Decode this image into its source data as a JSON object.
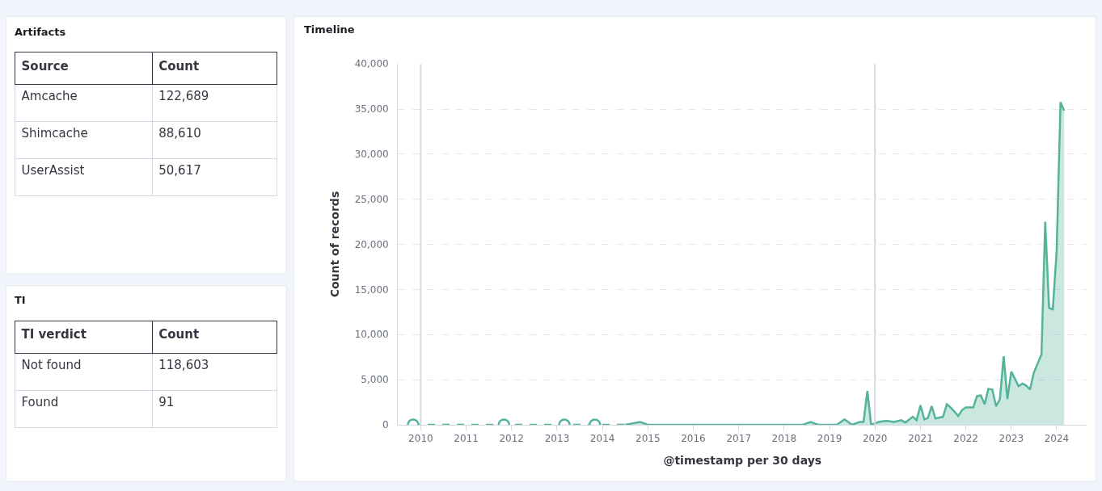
{
  "chart_data": [
    {
      "type": "other",
      "title": "Artifacts",
      "xlabel": "Source",
      "ylabel": "Count",
      "categories": [
        "Amcache",
        "Shimcache",
        "UserAssist"
      ],
      "value_labels": [
        "122,689",
        "88,610",
        "50,617"
      ]
    },
    {
      "type": "other",
      "title": "TI",
      "xlabel": "TI verdict",
      "ylabel": "Count",
      "categories": [
        "Not found",
        "Found"
      ],
      "value_labels": [
        "118,603",
        "91"
      ]
    },
    {
      "type": "area",
      "title": "Timeline",
      "xlabel": "@timestamp per 30 days",
      "ylabel": "Count of records",
      "grid": "y",
      "xlim": [
        "2009-07",
        "2024-09"
      ],
      "xticks": [
        "2010",
        "2011",
        "2012",
        "2013",
        "2014",
        "2015",
        "2016",
        "2017",
        "2018",
        "2019",
        "2020",
        "2021",
        "2022",
        "2023",
        "2024"
      ],
      "ylim": [
        0,
        40000
      ],
      "yticks": [
        {
          "value": 0,
          "label": "0"
        },
        {
          "value": 5000,
          "label": "5,000"
        },
        {
          "value": 10000,
          "label": "10,000"
        },
        {
          "value": 15000,
          "label": "15,000"
        },
        {
          "value": 20000,
          "label": "20,000"
        },
        {
          "value": 25000,
          "label": "25,000"
        },
        {
          "value": 30000,
          "label": "30,000"
        },
        {
          "value": 35000,
          "label": "35,000"
        },
        {
          "value": 40000,
          "label": "40,000"
        }
      ],
      "ref_lines": [
        {
          "axis": "x",
          "value": "2010",
          "color": "#d3dae6"
        },
        {
          "axis": "x",
          "value": "2020",
          "color": "#d3dae6"
        }
      ],
      "series": [
        {
          "type": "line",
          "color": "#54b399",
          "line_style": "dashed",
          "marker": "none",
          "x": [
            "2009-11",
            "2014-07"
          ],
          "values": [
            0,
            0
          ]
        },
        {
          "type": "scatter",
          "color": "#54b399",
          "marker": "circle",
          "x": [
            "2009-11",
            "2011-11",
            "2013-03",
            "2013-11"
          ],
          "values": [
            0,
            0,
            0,
            0
          ]
        },
        {
          "type": "area",
          "color": "#54b399",
          "x": [
            "2014-07",
            "2014-11",
            "2015-01",
            "2016-01",
            "2016-04",
            "2017-06",
            "2017-09",
            "2018-06",
            "2018-08",
            "2018-10",
            "2019-03",
            "2019-05",
            "2019-07",
            "2019-09",
            "2019-10",
            "2019-11",
            "2019-12",
            "2020-02",
            "2020-04",
            "2020-06",
            "2020-08",
            "2020-09",
            "2020-11",
            "2020-12",
            "2021-01",
            "2021-02",
            "2021-03",
            "2021-04",
            "2021-05",
            "2021-07",
            "2021-08",
            "2021-09",
            "2021-11",
            "2021-12",
            "2022-01",
            "2022-03",
            "2022-04",
            "2022-05",
            "2022-06",
            "2022-07",
            "2022-08",
            "2022-09",
            "2022-10",
            "2022-11",
            "2022-12",
            "2023-01",
            "2023-03",
            "2023-04",
            "2023-05",
            "2023-06",
            "2023-07",
            "2023-09",
            "2023-10",
            "2023-11",
            "2023-12",
            "2024-01",
            "2024-02",
            "2024-03"
          ],
          "values": [
            0,
            300,
            0,
            0,
            0,
            0,
            0,
            0,
            300,
            0,
            0,
            590,
            0,
            300,
            300,
            3740,
            0,
            300,
            440,
            300,
            500,
            240,
            880,
            500,
            2150,
            590,
            740,
            2060,
            680,
            880,
            2270,
            1910,
            970,
            1620,
            1910,
            1910,
            3180,
            3240,
            2270,
            3970,
            3910,
            2060,
            2800,
            7590,
            2850,
            5890,
            4270,
            4560,
            4330,
            3910,
            5740,
            7800,
            22510,
            12950,
            12800,
            19280,
            35760,
            34820
          ]
        }
      ]
    }
  ]
}
